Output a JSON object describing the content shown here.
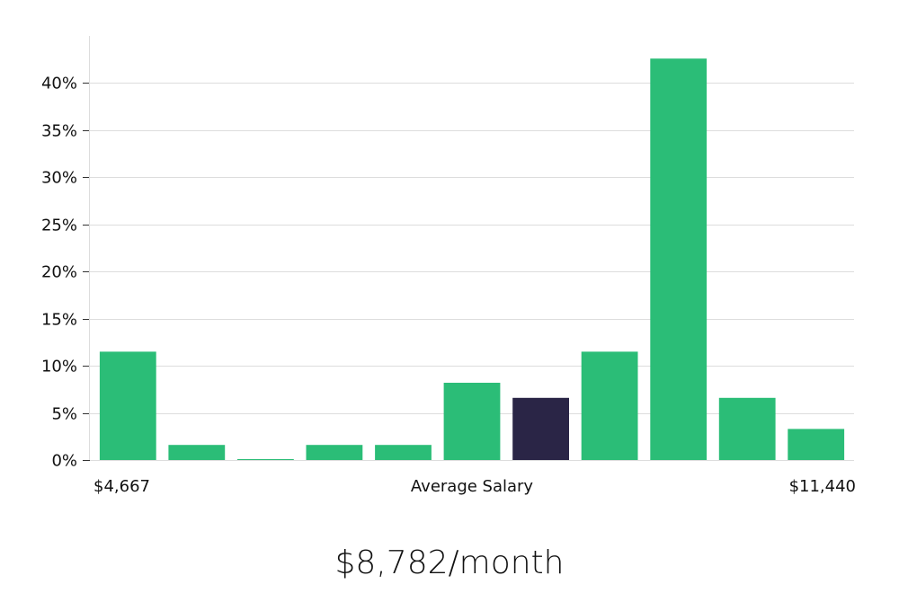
{
  "chart_data": {
    "type": "bar",
    "title": "",
    "xlabel": "Average Salary",
    "ylabel": "",
    "x_range_labels": {
      "min": "$4,667",
      "max": "$11,440"
    },
    "ylim": [
      0,
      45
    ],
    "yticks": [
      0,
      5,
      10,
      15,
      20,
      25,
      30,
      35,
      40
    ],
    "ytick_suffix": "%",
    "grid": true,
    "highlight_index": 6,
    "values": [
      11.5,
      1.6,
      0.1,
      1.6,
      1.6,
      8.2,
      6.6,
      11.5,
      42.6,
      6.6,
      3.3
    ]
  },
  "colors": {
    "bar": "#2bbd77",
    "highlight": "#2a2546",
    "grid": "#dddddd"
  },
  "summary": {
    "value": "$8,782/month"
  }
}
